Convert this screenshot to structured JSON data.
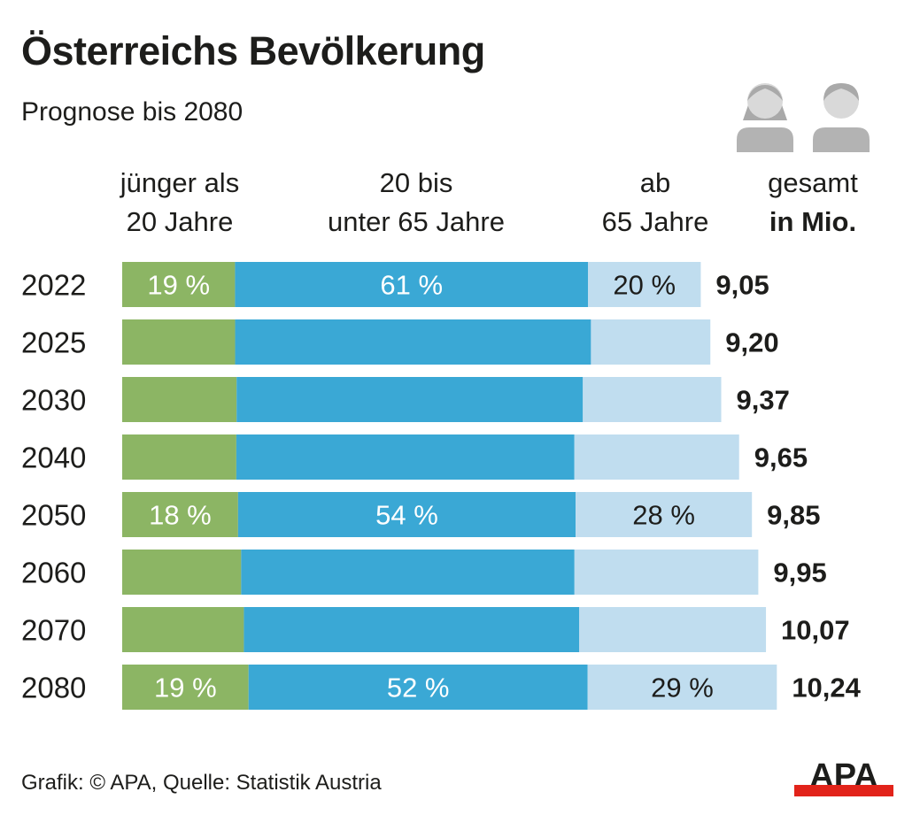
{
  "header": {
    "title": "Österreichs Bevölkerung",
    "subtitle": "Prognose bis 2080",
    "icons": [
      "woman-icon",
      "man-icon"
    ]
  },
  "columns": {
    "young": {
      "line1": "jünger als",
      "line2": "20 Jahre"
    },
    "middle": {
      "line1": "20 bis",
      "line2": "unter 65 Jahre"
    },
    "old": {
      "line1": "ab",
      "line2": "65 Jahre"
    },
    "total": {
      "line1": "gesamt",
      "line2": "in Mio."
    }
  },
  "colors": {
    "young": "#8cb564",
    "middle": "#3aa8d5",
    "old": "#c0ddef",
    "logo_red": "#e2231a"
  },
  "footer": {
    "source": "Grafik: © APA, Quelle: Statistik Austria",
    "logo_text": "APA"
  },
  "chart_data": {
    "type": "bar",
    "orientation": "horizontal",
    "stacked": true,
    "title": "Österreichs Bevölkerung",
    "subtitle": "Prognose bis 2080",
    "categories": [
      "2022",
      "2025",
      "2030",
      "2040",
      "2050",
      "2060",
      "2070",
      "2080"
    ],
    "totals": [
      9.05,
      9.2,
      9.37,
      9.65,
      9.85,
      9.95,
      10.07,
      10.24
    ],
    "totals_labels": [
      "9,05",
      "9,20",
      "9,37",
      "9,65",
      "9,85",
      "9,95",
      "10,07",
      "10,24"
    ],
    "total_unit": "in Mio.",
    "series": [
      {
        "name": "jünger als 20 Jahre",
        "key": "young",
        "values": [
          19.5,
          19.2,
          19.1,
          18.5,
          18.4,
          18.7,
          18.9,
          19.3
        ],
        "labels": [
          "19 %",
          "",
          "",
          "",
          "18 %",
          "",
          "",
          "19 %"
        ]
      },
      {
        "name": "20 bis unter 65 Jahre",
        "key": "middle",
        "values": [
          61,
          60.5,
          57.8,
          54.8,
          53.6,
          52.4,
          52.1,
          51.8
        ],
        "labels": [
          "61 %",
          "",
          "",
          "",
          "54 %",
          "",
          "",
          "52 %"
        ]
      },
      {
        "name": "ab 65 Jahre",
        "key": "old",
        "values": [
          19.5,
          20.3,
          23.1,
          26.7,
          28.0,
          28.9,
          29.0,
          28.9
        ],
        "labels": [
          "20 %",
          "",
          "",
          "",
          "28 %",
          "",
          "",
          "29 %"
        ]
      }
    ],
    "xlabel": "",
    "ylabel": "",
    "legend": "top (column headers)",
    "grid": false
  }
}
